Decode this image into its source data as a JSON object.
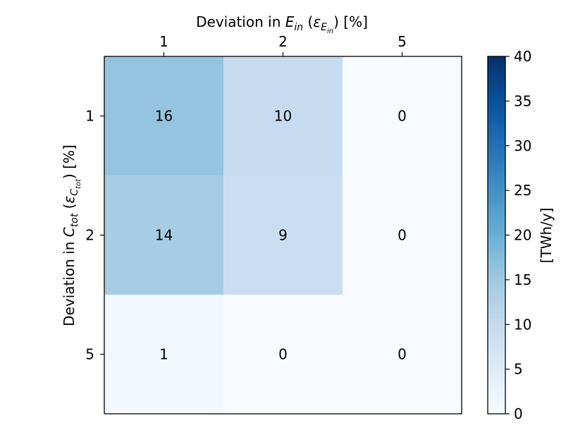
{
  "chart_data": {
    "type": "heatmap",
    "x_label_parts": {
      "prefix": "Deviation in ",
      "var": "E",
      "var_sub": "in",
      "mid": " (",
      "eps": "ε",
      "eps_sub": "E",
      "eps_subsub": "in",
      "suffix": ") [%]"
    },
    "y_label_parts": {
      "prefix": "Deviation in ",
      "var": "C",
      "var_sub": "tot",
      "mid": " (",
      "eps": "ε",
      "eps_sub": "C",
      "eps_subsub": "tot",
      "suffix": ") [%]"
    },
    "x_categories": [
      "1",
      "2",
      "5"
    ],
    "y_categories": [
      "1",
      "2",
      "5"
    ],
    "values": [
      [
        16,
        10,
        0
      ],
      [
        14,
        9,
        0
      ],
      [
        1,
        0,
        0
      ]
    ],
    "colorbar": {
      "label": "[TWh/y]",
      "min": 0,
      "max": 40,
      "ticks": [
        0,
        5,
        10,
        15,
        20,
        25,
        30,
        35,
        40
      ],
      "colormap": "Blues"
    },
    "colormap_stops": [
      "#f7fbff",
      "#deebf7",
      "#c6dbef",
      "#9ecae1",
      "#6baed6",
      "#4292c6",
      "#2171b5",
      "#08519c",
      "#08306b"
    ]
  }
}
